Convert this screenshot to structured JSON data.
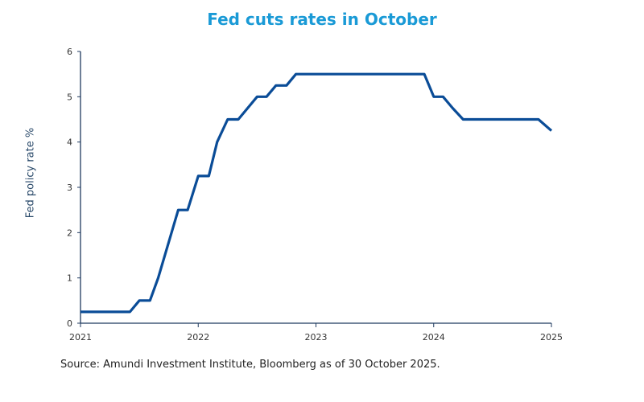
{
  "chart_data": {
    "type": "line",
    "title": "Fed cuts rates in October",
    "xlabel": "",
    "ylabel": "Fed policy rate %",
    "xlim": [
      2021,
      2025
    ],
    "ylim": [
      0,
      6
    ],
    "x_ticks": [
      "2021",
      "2022",
      "2023",
      "2024",
      "2025"
    ],
    "y_ticks": [
      "0",
      "1",
      "2",
      "3",
      "4",
      "5",
      "6"
    ],
    "grid": false,
    "color": "#0a4c97",
    "series": [
      {
        "x": [
          2021.0,
          2021.42,
          2021.5,
          2021.59,
          2021.66,
          2021.83,
          2021.91,
          2022.0,
          2022.09,
          2022.16,
          2022.25,
          2022.34,
          2022.5,
          2022.58,
          2022.66,
          2022.75,
          2022.83,
          2023.92,
          2024.0,
          2024.08,
          2024.16,
          2024.25,
          2024.89,
          2025.0
        ],
        "y": [
          0.25,
          0.25,
          0.5,
          0.5,
          1.0,
          2.5,
          2.5,
          3.25,
          3.25,
          4.0,
          4.5,
          4.5,
          5.0,
          5.0,
          5.25,
          5.25,
          5.5,
          5.5,
          5.0,
          5.0,
          4.75,
          4.5,
          4.5,
          4.25
        ]
      }
    ]
  },
  "source": "Source:  Amundi Investment Institute, Bloomberg  as of 30 October 2025."
}
